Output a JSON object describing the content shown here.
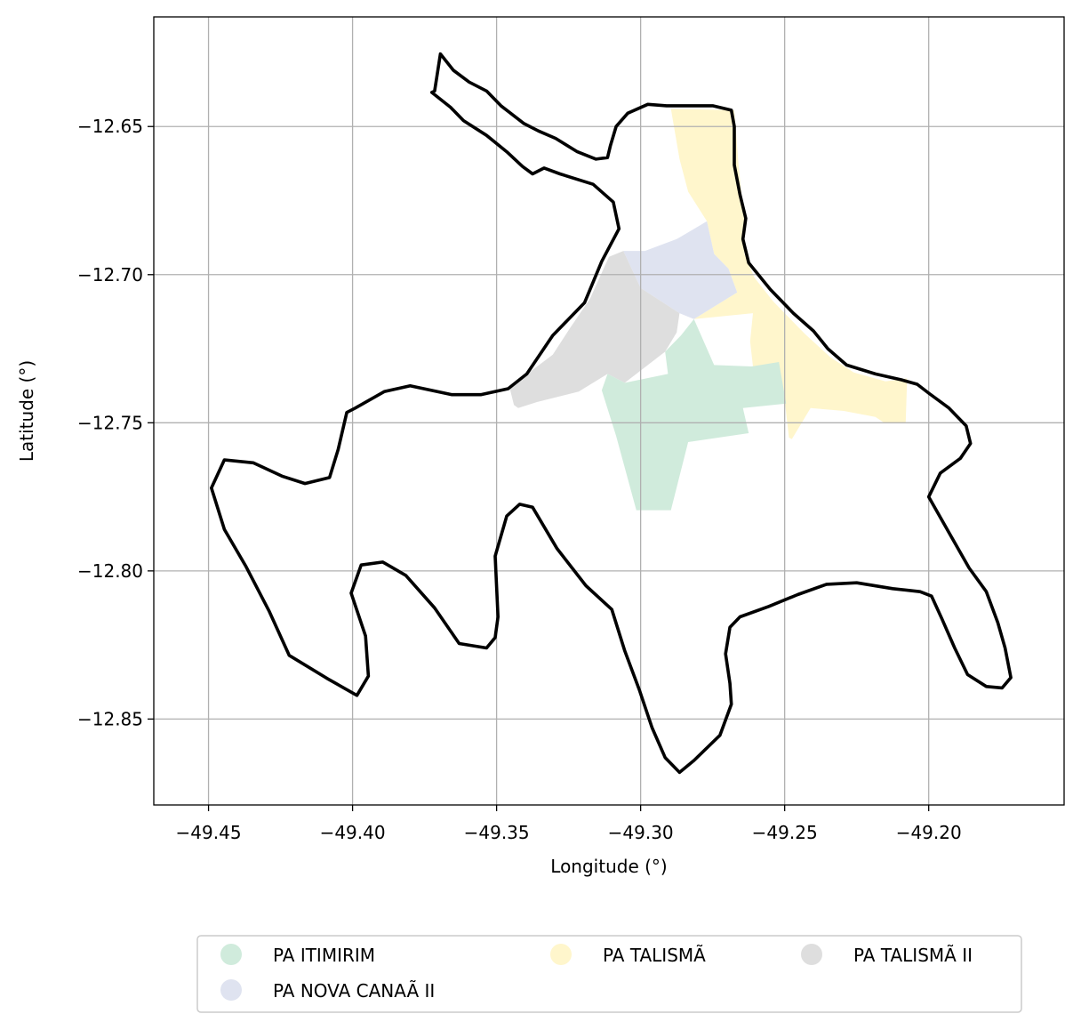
{
  "chart_data": {
    "type": "map",
    "xlabel": "Longitude (°)",
    "ylabel": "Latitude (°)",
    "xlim": [
      -49.469,
      -49.153
    ],
    "ylim": [
      -12.879,
      -12.613
    ],
    "xticks": [
      -49.45,
      -49.4,
      -49.35,
      -49.3,
      -49.25,
      -49.2
    ],
    "yticks": [
      -12.65,
      -12.7,
      -12.75,
      -12.8,
      -12.85
    ],
    "xtick_labels": [
      "−49.45",
      "−49.40",
      "−49.35",
      "−49.30",
      "−49.25",
      "−49.20"
    ],
    "ytick_labels": [
      "−12.65",
      "−12.70",
      "−12.75",
      "−12.80",
      "−12.85"
    ],
    "grid": true,
    "legend_placement": "bottom-center",
    "legend": [
      {
        "label": "PA ITIMIRIM",
        "color": "#d0ebdc"
      },
      {
        "label": "PA NOVA CANAÃ II",
        "color": "#dfe3f0"
      },
      {
        "label": "PA TALISMÃ",
        "color": "#fff6cc"
      },
      {
        "label": "PA TALISMÃ II",
        "color": "#dedede"
      }
    ],
    "boundary_color": "#000000",
    "regions": [
      {
        "name": "PA TALISMÃ",
        "color": "#fff6cc",
        "coords": [
          [
            -49.2895,
            -12.644
          ],
          [
            -49.2675,
            -12.6445
          ],
          [
            -49.266,
            -12.663
          ],
          [
            -49.264,
            -12.682
          ],
          [
            -49.264,
            -12.693
          ],
          [
            -49.2605,
            -12.701
          ],
          [
            -49.254,
            -12.709
          ],
          [
            -49.243,
            -12.72
          ],
          [
            -49.234,
            -12.728
          ],
          [
            -49.226,
            -12.733
          ],
          [
            -49.215,
            -12.736
          ],
          [
            -49.2075,
            -12.735
          ],
          [
            -49.208,
            -12.75
          ],
          [
            -49.2155,
            -12.75
          ],
          [
            -49.2185,
            -12.748
          ],
          [
            -49.2295,
            -12.746
          ],
          [
            -49.241,
            -12.745
          ],
          [
            -49.2475,
            -12.7555
          ],
          [
            -49.2485,
            -12.755
          ],
          [
            -49.25,
            -12.7425
          ],
          [
            -49.2525,
            -12.735
          ],
          [
            -49.261,
            -12.731
          ],
          [
            -49.262,
            -12.7225
          ],
          [
            -49.261,
            -12.713
          ],
          [
            -49.2815,
            -12.715
          ],
          [
            -49.2665,
            -12.706
          ],
          [
            -49.2695,
            -12.698
          ],
          [
            -49.2745,
            -12.693
          ],
          [
            -49.277,
            -12.682
          ],
          [
            -49.2835,
            -12.672
          ],
          [
            -49.2865,
            -12.661
          ]
        ]
      },
      {
        "name": "PA NOVA CANAÃ II",
        "color": "#dfe3f0",
        "coords": [
          [
            -49.277,
            -12.682
          ],
          [
            -49.2745,
            -12.693
          ],
          [
            -49.2695,
            -12.698
          ],
          [
            -49.2665,
            -12.706
          ],
          [
            -49.2815,
            -12.715
          ],
          [
            -49.2865,
            -12.713
          ],
          [
            -49.3,
            -12.7045
          ],
          [
            -49.306,
            -12.692
          ],
          [
            -49.2985,
            -12.692
          ],
          [
            -49.2875,
            -12.688
          ]
        ]
      },
      {
        "name": "PA TALISMÃ II",
        "color": "#dedede",
        "coords": [
          [
            -49.306,
            -12.692
          ],
          [
            -49.311,
            -12.694
          ],
          [
            -49.3175,
            -12.708
          ],
          [
            -49.3245,
            -12.718
          ],
          [
            -49.3305,
            -12.727
          ],
          [
            -49.3455,
            -12.738
          ],
          [
            -49.344,
            -12.744
          ],
          [
            -49.3425,
            -12.745
          ],
          [
            -49.336,
            -12.743
          ],
          [
            -49.3215,
            -12.7395
          ],
          [
            -49.3115,
            -12.7335
          ],
          [
            -49.3055,
            -12.7365
          ],
          [
            -49.2915,
            -12.726
          ],
          [
            -49.2875,
            -12.7195
          ],
          [
            -49.2865,
            -12.713
          ],
          [
            -49.3,
            -12.7045
          ]
        ]
      },
      {
        "name": "PA ITIMIRIM",
        "color": "#d0ebdc",
        "coords": [
          [
            -49.2815,
            -12.715
          ],
          [
            -49.286,
            -12.7205
          ],
          [
            -49.2915,
            -12.726
          ],
          [
            -49.2905,
            -12.7335
          ],
          [
            -49.3055,
            -12.7365
          ],
          [
            -49.3115,
            -12.7335
          ],
          [
            -49.3135,
            -12.739
          ],
          [
            -49.3085,
            -12.7545
          ],
          [
            -49.3015,
            -12.7795
          ],
          [
            -49.2895,
            -12.7795
          ],
          [
            -49.2835,
            -12.7565
          ],
          [
            -49.2625,
            -12.7535
          ],
          [
            -49.2645,
            -12.745
          ],
          [
            -49.2495,
            -12.7435
          ],
          [
            -49.252,
            -12.7295
          ],
          [
            -49.2615,
            -12.731
          ],
          [
            -49.2745,
            -12.7305
          ]
        ]
      }
    ],
    "boundary": [
      [
        -49.3715,
        -12.638
      ],
      [
        -49.3695,
        -12.6255
      ],
      [
        -49.365,
        -12.631
      ],
      [
        -49.3595,
        -12.635
      ],
      [
        -49.3535,
        -12.638
      ],
      [
        -49.3485,
        -12.643
      ],
      [
        -49.3405,
        -12.649
      ],
      [
        -49.3355,
        -12.6515
      ],
      [
        -49.3295,
        -12.654
      ],
      [
        -49.322,
        -12.6585
      ],
      [
        -49.3155,
        -12.661
      ],
      [
        -49.3115,
        -12.6605
      ],
      [
        -49.3105,
        -12.6565
      ],
      [
        -49.3085,
        -12.65
      ],
      [
        -49.3045,
        -12.6455
      ],
      [
        -49.2975,
        -12.6425
      ],
      [
        -49.291,
        -12.643
      ],
      [
        -49.282,
        -12.643
      ],
      [
        -49.275,
        -12.643
      ],
      [
        -49.2685,
        -12.6445
      ],
      [
        -49.2675,
        -12.65
      ],
      [
        -49.2675,
        -12.663
      ],
      [
        -49.2655,
        -12.673
      ],
      [
        -49.2635,
        -12.681
      ],
      [
        -49.2645,
        -12.688
      ],
      [
        -49.2625,
        -12.696
      ],
      [
        -49.255,
        -12.705
      ],
      [
        -49.247,
        -12.713
      ],
      [
        -49.24,
        -12.719
      ],
      [
        -49.235,
        -12.725
      ],
      [
        -49.2285,
        -12.7305
      ],
      [
        -49.2185,
        -12.7335
      ],
      [
        -49.2095,
        -12.7355
      ],
      [
        -49.204,
        -12.737
      ],
      [
        -49.2,
        -12.74
      ],
      [
        -49.193,
        -12.745
      ],
      [
        -49.187,
        -12.751
      ],
      [
        -49.1855,
        -12.757
      ],
      [
        -49.189,
        -12.762
      ],
      [
        -49.196,
        -12.767
      ],
      [
        -49.2,
        -12.775
      ],
      [
        -49.193,
        -12.787
      ],
      [
        -49.186,
        -12.799
      ],
      [
        -49.18,
        -12.807
      ],
      [
        -49.176,
        -12.8175
      ],
      [
        -49.1735,
        -12.826
      ],
      [
        -49.1715,
        -12.836
      ],
      [
        -49.1745,
        -12.8395
      ],
      [
        -49.18,
        -12.839
      ],
      [
        -49.1865,
        -12.835
      ],
      [
        -49.191,
        -12.826
      ],
      [
        -49.1955,
        -12.816
      ],
      [
        -49.199,
        -12.8085
      ],
      [
        -49.203,
        -12.807
      ],
      [
        -49.2125,
        -12.806
      ],
      [
        -49.225,
        -12.804
      ],
      [
        -49.2355,
        -12.8045
      ],
      [
        -49.2455,
        -12.808
      ],
      [
        -49.2555,
        -12.812
      ],
      [
        -49.2655,
        -12.8155
      ],
      [
        -49.269,
        -12.819
      ],
      [
        -49.2705,
        -12.828
      ],
      [
        -49.269,
        -12.838
      ],
      [
        -49.2685,
        -12.845
      ],
      [
        -49.2725,
        -12.8555
      ],
      [
        -49.2815,
        -12.864
      ],
      [
        -49.2865,
        -12.868
      ],
      [
        -49.2915,
        -12.863
      ],
      [
        -49.296,
        -12.853
      ],
      [
        -49.3005,
        -12.84
      ],
      [
        -49.3055,
        -12.827
      ],
      [
        -49.31,
        -12.813
      ],
      [
        -49.319,
        -12.805
      ],
      [
        -49.329,
        -12.7925
      ],
      [
        -49.3375,
        -12.7785
      ],
      [
        -49.342,
        -12.7775
      ],
      [
        -49.3465,
        -12.7815
      ],
      [
        -49.3505,
        -12.795
      ],
      [
        -49.3495,
        -12.8155
      ],
      [
        -49.3505,
        -12.8225
      ],
      [
        -49.3535,
        -12.826
      ],
      [
        -49.363,
        -12.8245
      ],
      [
        -49.3715,
        -12.8125
      ],
      [
        -49.3815,
        -12.8015
      ],
      [
        -49.3895,
        -12.797
      ],
      [
        -49.397,
        -12.798
      ],
      [
        -49.4005,
        -12.8075
      ],
      [
        -49.3955,
        -12.822
      ],
      [
        -49.3945,
        -12.8355
      ],
      [
        -49.3985,
        -12.842
      ],
      [
        -49.4085,
        -12.8365
      ],
      [
        -49.422,
        -12.8285
      ],
      [
        -49.429,
        -12.8135
      ],
      [
        -49.437,
        -12.7985
      ],
      [
        -49.4445,
        -12.786
      ],
      [
        -49.449,
        -12.772
      ],
      [
        -49.4445,
        -12.7625
      ],
      [
        -49.4345,
        -12.7635
      ],
      [
        -49.4245,
        -12.768
      ],
      [
        -49.4165,
        -12.7705
      ],
      [
        -49.408,
        -12.7685
      ],
      [
        -49.405,
        -12.759
      ],
      [
        -49.402,
        -12.7465
      ],
      [
        -49.399,
        -12.745
      ],
      [
        -49.389,
        -12.7395
      ],
      [
        -49.38,
        -12.7375
      ],
      [
        -49.3655,
        -12.7405
      ],
      [
        -49.3555,
        -12.7405
      ],
      [
        -49.346,
        -12.7385
      ],
      [
        -49.3395,
        -12.7335
      ],
      [
        -49.3305,
        -12.7205
      ],
      [
        -49.3195,
        -12.7095
      ],
      [
        -49.3135,
        -12.6955
      ],
      [
        -49.3075,
        -12.6845
      ],
      [
        -49.3095,
        -12.6755
      ],
      [
        -49.3165,
        -12.6695
      ],
      [
        -49.328,
        -12.666
      ],
      [
        -49.3335,
        -12.664
      ],
      [
        -49.3375,
        -12.666
      ],
      [
        -49.341,
        -12.6635
      ],
      [
        -49.3465,
        -12.6585
      ],
      [
        -49.3535,
        -12.653
      ],
      [
        -49.3615,
        -12.648
      ],
      [
        -49.366,
        -12.6435
      ],
      [
        -49.3725,
        -12.6385
      ]
    ]
  }
}
